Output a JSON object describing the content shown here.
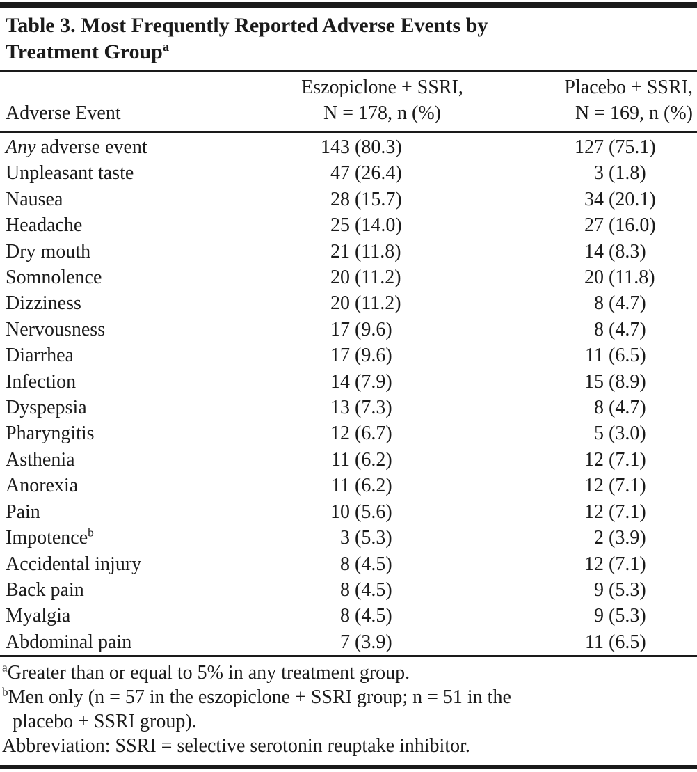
{
  "meta": {
    "background_color": "#ffffff",
    "text_color": "#1b1b1b",
    "rule_color": "#1a1a1a"
  },
  "table": {
    "title": {
      "line1": "Table 3. Most Frequently Reported Adverse Events by",
      "line2": "Treatment Group",
      "sup": "a"
    },
    "header": {
      "col1": "Adverse Event",
      "col2": {
        "line1": "Eszopiclone + SSRI,",
        "line2": "N = 178, n (%)"
      },
      "col3": {
        "line1": "Placebo + SSRI,",
        "line2": "N = 169, n (%)"
      }
    },
    "rows": [
      {
        "italic": "Any",
        "label": " adverse event",
        "sup": "",
        "eszopiclone_n": "143",
        "eszopiclone_pct": "(80.3)",
        "placebo_n": "127",
        "placebo_pct": "(75.1)"
      },
      {
        "italic": "",
        "label": "Unpleasant taste",
        "sup": "",
        "eszopiclone_n": "47",
        "eszopiclone_pct": "(26.4)",
        "placebo_n": "3",
        "placebo_pct": "(1.8)"
      },
      {
        "italic": "",
        "label": "Nausea",
        "sup": "",
        "eszopiclone_n": "28",
        "eszopiclone_pct": "(15.7)",
        "placebo_n": "34",
        "placebo_pct": "(20.1)"
      },
      {
        "italic": "",
        "label": "Headache",
        "sup": "",
        "eszopiclone_n": "25",
        "eszopiclone_pct": "(14.0)",
        "placebo_n": "27",
        "placebo_pct": "(16.0)"
      },
      {
        "italic": "",
        "label": "Dry mouth",
        "sup": "",
        "eszopiclone_n": "21",
        "eszopiclone_pct": "(11.8)",
        "placebo_n": "14",
        "placebo_pct": "(8.3)"
      },
      {
        "italic": "",
        "label": "Somnolence",
        "sup": "",
        "eszopiclone_n": "20",
        "eszopiclone_pct": "(11.2)",
        "placebo_n": "20",
        "placebo_pct": "(11.8)"
      },
      {
        "italic": "",
        "label": "Dizziness",
        "sup": "",
        "eszopiclone_n": "20",
        "eszopiclone_pct": "(11.2)",
        "placebo_n": "8",
        "placebo_pct": "(4.7)"
      },
      {
        "italic": "",
        "label": "Nervousness",
        "sup": "",
        "eszopiclone_n": "17",
        "eszopiclone_pct": "(9.6)",
        "placebo_n": "8",
        "placebo_pct": "(4.7)"
      },
      {
        "italic": "",
        "label": "Diarrhea",
        "sup": "",
        "eszopiclone_n": "17",
        "eszopiclone_pct": "(9.6)",
        "placebo_n": "11",
        "placebo_pct": "(6.5)"
      },
      {
        "italic": "",
        "label": "Infection",
        "sup": "",
        "eszopiclone_n": "14",
        "eszopiclone_pct": "(7.9)",
        "placebo_n": "15",
        "placebo_pct": "(8.9)"
      },
      {
        "italic": "",
        "label": "Dyspepsia",
        "sup": "",
        "eszopiclone_n": "13",
        "eszopiclone_pct": "(7.3)",
        "placebo_n": "8",
        "placebo_pct": "(4.7)"
      },
      {
        "italic": "",
        "label": "Pharyngitis",
        "sup": "",
        "eszopiclone_n": "12",
        "eszopiclone_pct": "(6.7)",
        "placebo_n": "5",
        "placebo_pct": "(3.0)"
      },
      {
        "italic": "",
        "label": "Asthenia",
        "sup": "",
        "eszopiclone_n": "11",
        "eszopiclone_pct": "(6.2)",
        "placebo_n": "12",
        "placebo_pct": "(7.1)"
      },
      {
        "italic": "",
        "label": "Anorexia",
        "sup": "",
        "eszopiclone_n": "11",
        "eszopiclone_pct": "(6.2)",
        "placebo_n": "12",
        "placebo_pct": "(7.1)"
      },
      {
        "italic": "",
        "label": "Pain",
        "sup": "",
        "eszopiclone_n": "10",
        "eszopiclone_pct": "(5.6)",
        "placebo_n": "12",
        "placebo_pct": "(7.1)"
      },
      {
        "italic": "",
        "label": "Impotence",
        "sup": "b",
        "eszopiclone_n": "3",
        "eszopiclone_pct": "(5.3)",
        "placebo_n": "2",
        "placebo_pct": "(3.9)"
      },
      {
        "italic": "",
        "label": "Accidental injury",
        "sup": "",
        "eszopiclone_n": "8",
        "eszopiclone_pct": "(4.5)",
        "placebo_n": "12",
        "placebo_pct": "(7.1)"
      },
      {
        "italic": "",
        "label": "Back pain",
        "sup": "",
        "eszopiclone_n": "8",
        "eszopiclone_pct": "(4.5)",
        "placebo_n": "9",
        "placebo_pct": "(5.3)"
      },
      {
        "italic": "",
        "label": "Myalgia",
        "sup": "",
        "eszopiclone_n": "8",
        "eszopiclone_pct": "(4.5)",
        "placebo_n": "9",
        "placebo_pct": "(5.3)"
      },
      {
        "italic": "",
        "label": "Abdominal pain",
        "sup": "",
        "eszopiclone_n": "7",
        "eszopiclone_pct": "(3.9)",
        "placebo_n": "11",
        "placebo_pct": "(6.5)"
      }
    ],
    "footnotes": [
      {
        "sup": "a",
        "lines": [
          "Greater than or equal to 5% in any treatment group."
        ]
      },
      {
        "sup": "b",
        "lines": [
          "Men only (n = 57 in the eszopiclone + SSRI group; n = 51 in the",
          "placebo + SSRI group)."
        ]
      },
      {
        "sup": "",
        "lines": [
          "Abbreviation: SSRI = selective serotonin reuptake inhibitor."
        ]
      }
    ]
  }
}
